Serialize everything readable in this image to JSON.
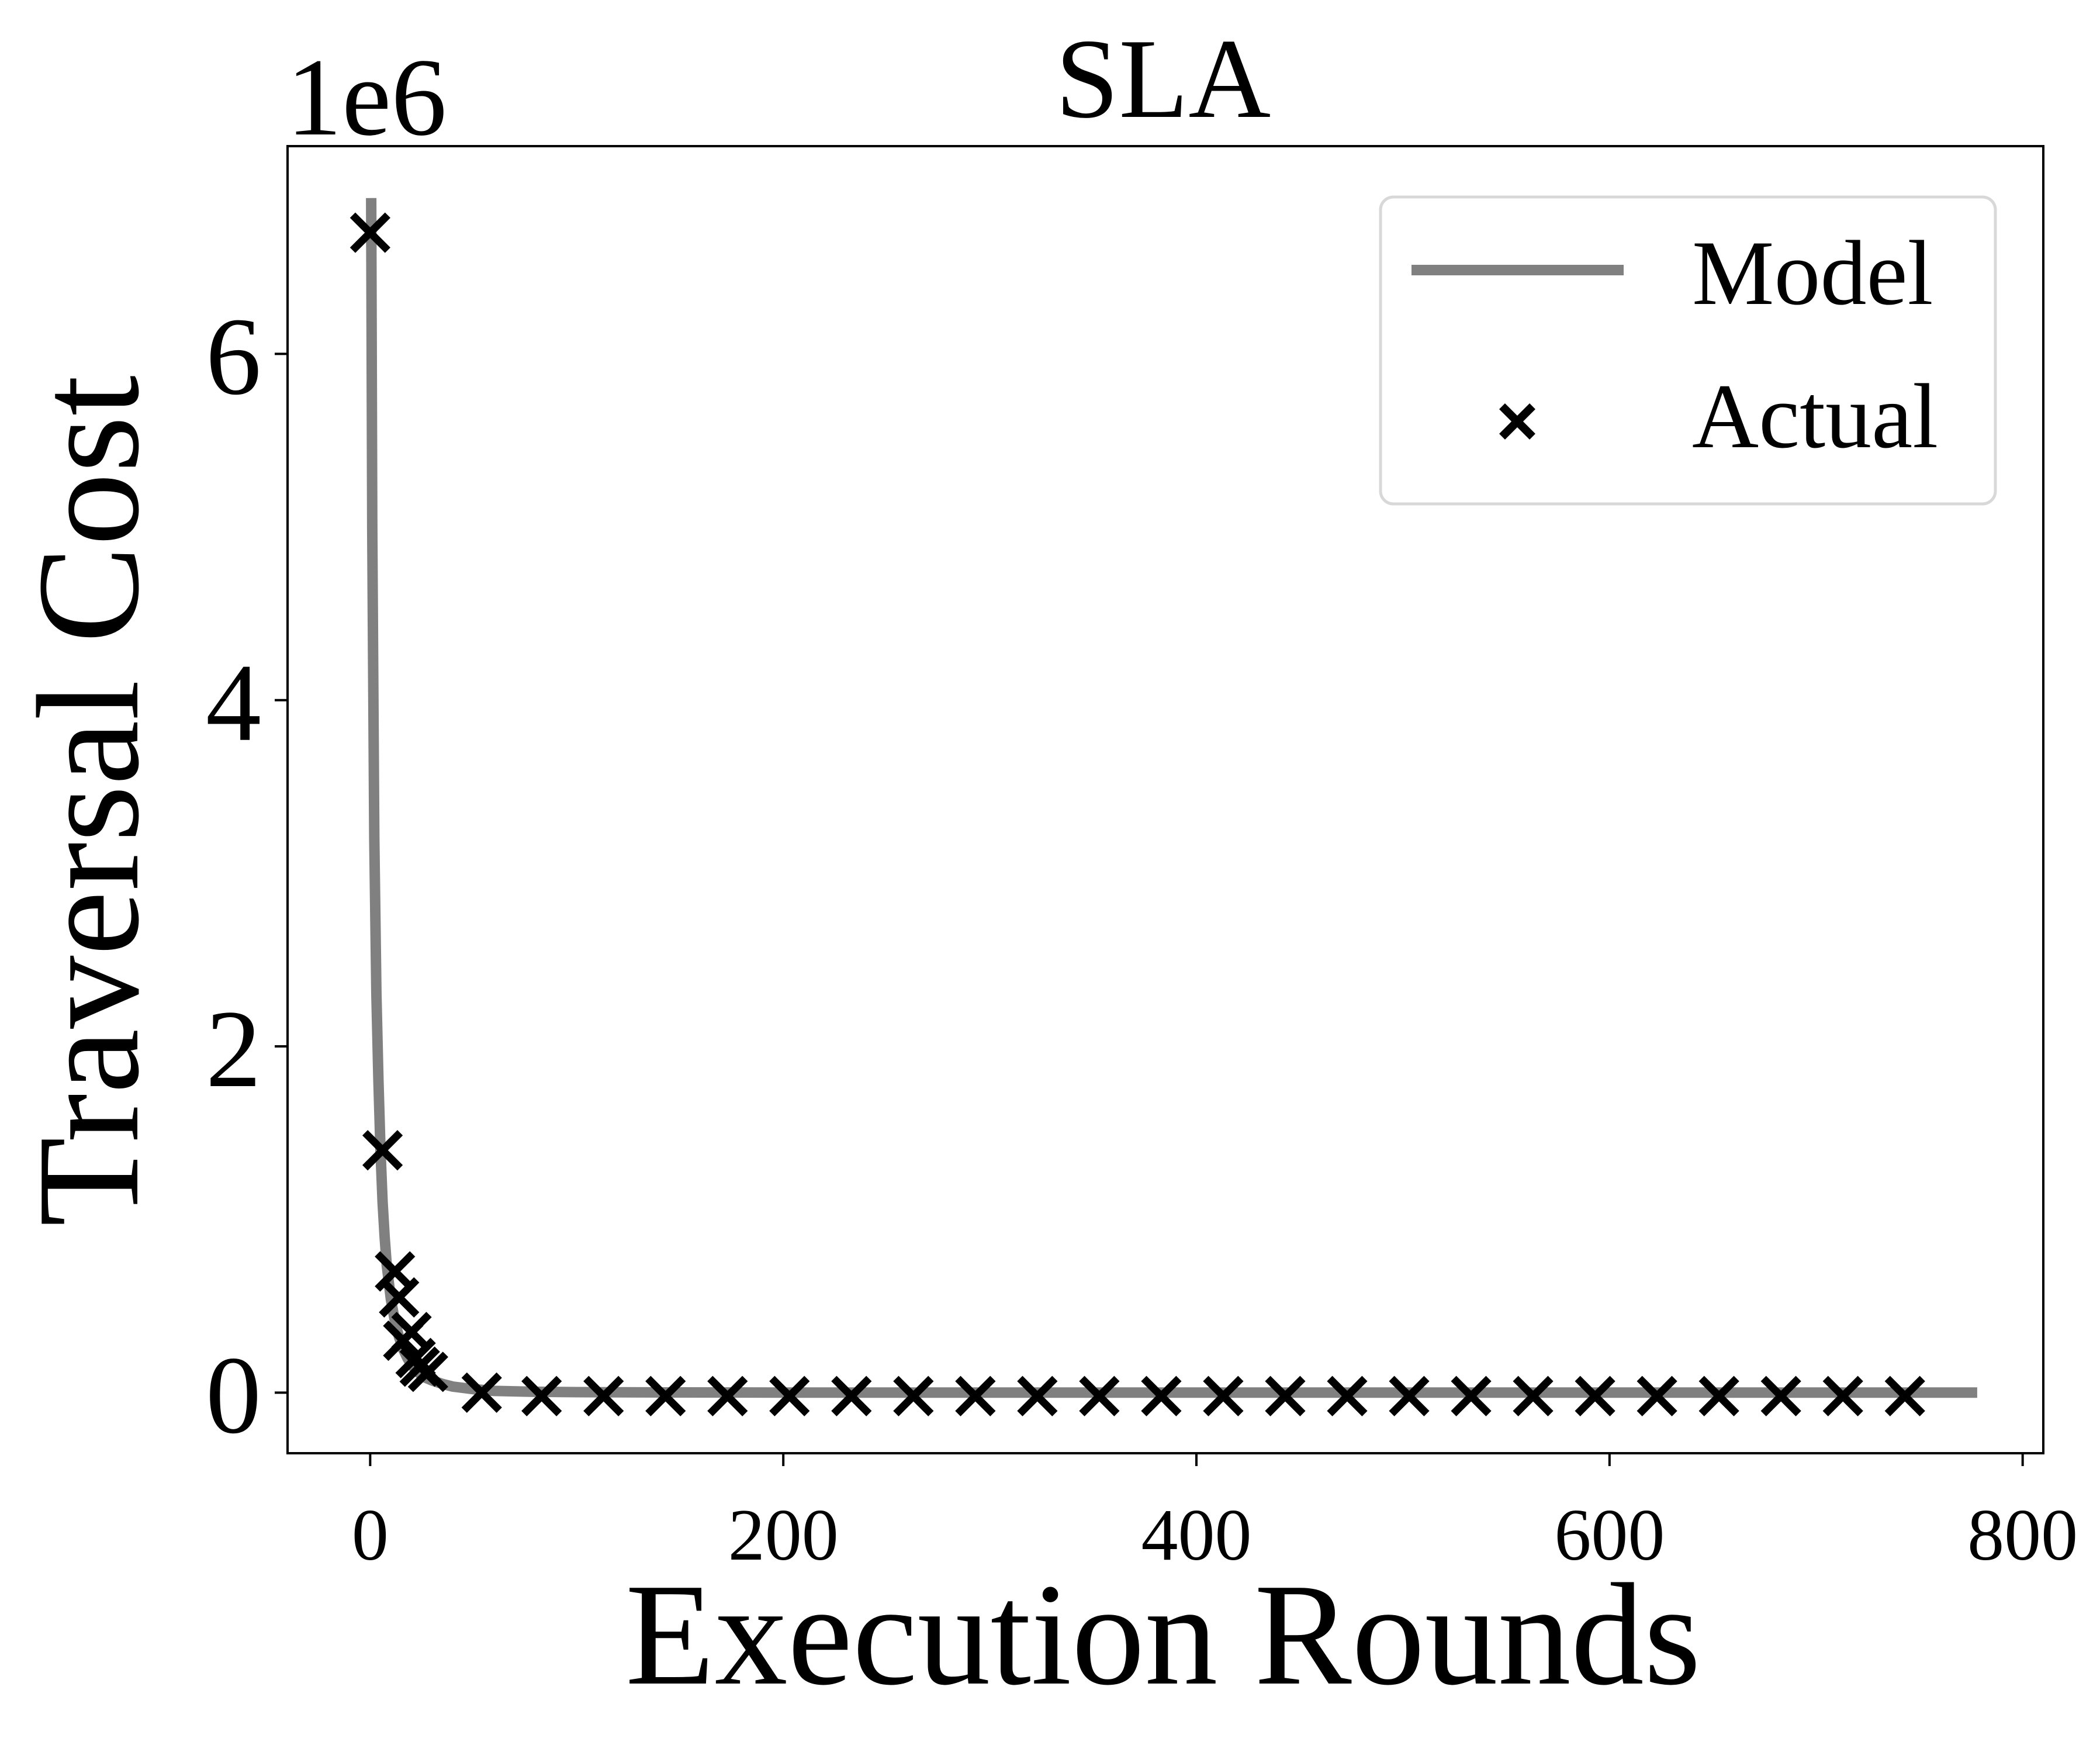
{
  "chart_data": {
    "type": "scatter",
    "title": "SLA",
    "xlabel": "Execution Rounds",
    "ylabel": "Traversal Cost",
    "y_multiplier_label": "1e6",
    "xlim": [
      -40,
      810
    ],
    "ylim": [
      -0.35,
      7.2
    ],
    "y_scale_factor": 1000000,
    "x_ticks": [
      0,
      200,
      400,
      600,
      800
    ],
    "x_tick_labels": [
      "0",
      "200",
      "400",
      "600",
      "800"
    ],
    "y_ticks": [
      0,
      2,
      4,
      6
    ],
    "y_tick_labels": [
      "0",
      "2",
      "4",
      "6"
    ],
    "grid": false,
    "legend_position": "top-right",
    "legend": [
      {
        "label": "Model",
        "marker": "line",
        "color": "#808080"
      },
      {
        "label": "Actual",
        "marker": "x",
        "color": "#000000"
      }
    ],
    "series": [
      {
        "name": "Model",
        "kind": "line",
        "color": "#808080",
        "x": [
          0.5,
          1,
          2,
          3,
          4,
          5,
          6,
          7,
          8,
          10,
          12,
          14,
          16,
          18,
          20,
          23,
          26,
          30,
          35,
          40,
          50,
          60,
          80,
          100,
          150,
          200,
          300,
          400,
          500,
          600,
          700,
          778
        ],
        "y": [
          6.9,
          5.0,
          3.2,
          2.3,
          1.8,
          1.4,
          1.1,
          0.9,
          0.74,
          0.54,
          0.41,
          0.32,
          0.25,
          0.2,
          0.16,
          0.12,
          0.09,
          0.07,
          0.05,
          0.035,
          0.02,
          0.01,
          0.005,
          0.003,
          0.001,
          0.0005,
          0.0002,
          0.0001,
          0.0,
          0.0,
          0.0,
          0.0
        ]
      },
      {
        "name": "Actual",
        "kind": "scatter",
        "marker": "x",
        "color": "#000000",
        "x": [
          0,
          6,
          12,
          14,
          20,
          16,
          24,
          22,
          28,
          54,
          83,
          113,
          143,
          173,
          203,
          233,
          263,
          293,
          323,
          353,
          383,
          413,
          443,
          473,
          503,
          533,
          563,
          593,
          623,
          653,
          683,
          713,
          743
        ],
        "y": [
          6.7,
          1.4,
          0.7,
          0.55,
          0.35,
          0.3,
          0.15,
          0.2,
          0.12,
          0.0,
          -0.02,
          -0.02,
          -0.02,
          -0.02,
          -0.02,
          -0.02,
          -0.02,
          -0.02,
          -0.02,
          -0.02,
          -0.02,
          -0.02,
          -0.02,
          -0.02,
          -0.02,
          -0.02,
          -0.02,
          -0.02,
          -0.02,
          -0.02,
          -0.02,
          -0.02,
          -0.02
        ]
      }
    ]
  }
}
